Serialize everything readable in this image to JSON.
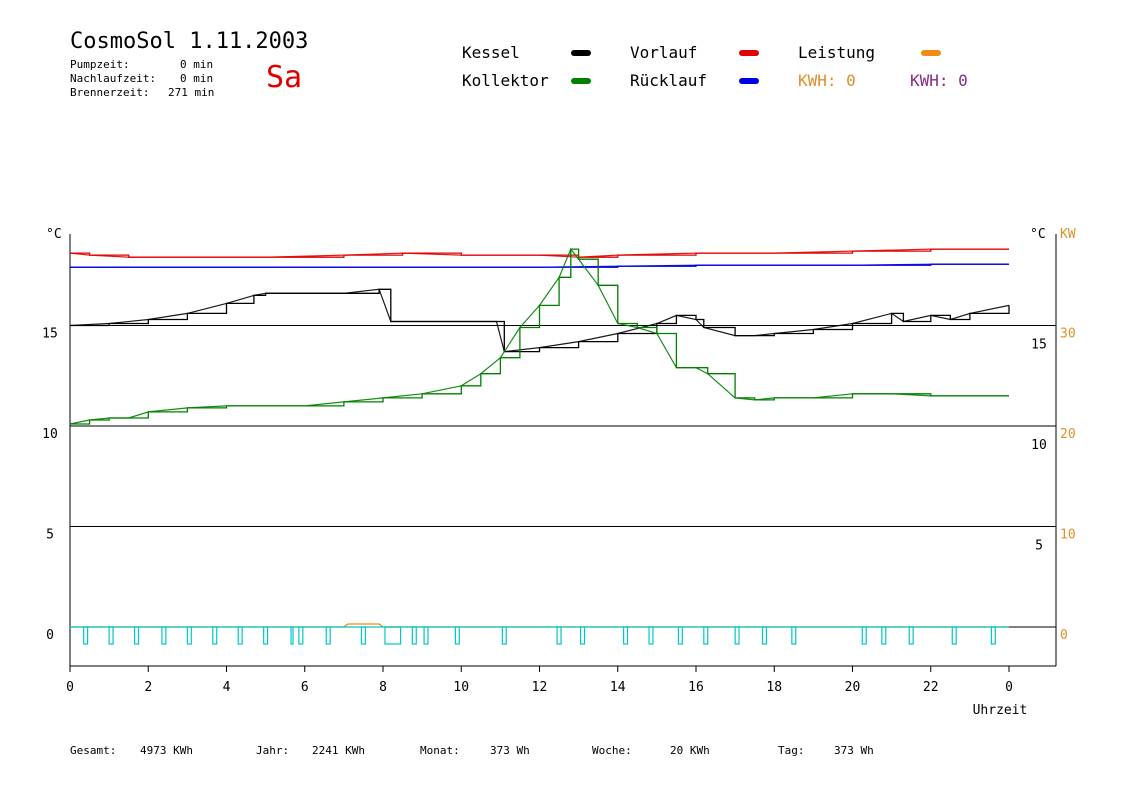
{
  "header": {
    "title": "CosmoSol 1.11.2003",
    "weekday": "Sa",
    "times": [
      {
        "label": "Pumpzeit:",
        "value": "0 min"
      },
      {
        "label": "Nachlaufzeit:",
        "value": "0 min"
      },
      {
        "label": "Brennerzeit:",
        "value": "271 min"
      }
    ]
  },
  "legend": [
    {
      "label": "Kessel",
      "color": "#000000"
    },
    {
      "label": "Vorlauf",
      "color": "#e00000"
    },
    {
      "label": "Leistung",
      "color": "#f08c10"
    },
    {
      "label": "Kollektor",
      "color": "#008000"
    },
    {
      "label": "Rücklauf",
      "color": "#0000e0"
    }
  ],
  "kwh": [
    {
      "label": "KWH: 0",
      "color": "#e0902a"
    },
    {
      "label": "KWH: 0",
      "color": "#8a2a8a"
    }
  ],
  "footer": [
    {
      "label": "Gesamt:",
      "value": "4973 KWh"
    },
    {
      "label": "Jahr:",
      "value": "2241 KWh"
    },
    {
      "label": "Monat:",
      "value": "373 Wh"
    },
    {
      "label": "Woche:",
      "value": "20 KWh"
    },
    {
      "label": "Tag:",
      "value": "373 Wh"
    }
  ],
  "chart_data": {
    "type": "line",
    "xlabel": "Uhrzeit",
    "x_ticks": [
      "0",
      "2",
      "4",
      "6",
      "8",
      "10",
      "12",
      "14",
      "16",
      "18",
      "20",
      "22",
      "0"
    ],
    "xlim": [
      0,
      24
    ],
    "left_axis": {
      "unit": "°C",
      "ticks": [
        "0",
        "5",
        "10",
        "15"
      ],
      "ylim": [
        0,
        20
      ]
    },
    "right_axis_lower": {
      "unit": "°C",
      "ticks": [
        "5",
        "10",
        "15"
      ]
    },
    "right_axis_upper": {
      "unit": "KW",
      "ticks": [
        "0",
        "10",
        "20",
        "30"
      ],
      "color": "#e0902a"
    },
    "series": [
      {
        "name": "Vorlauf",
        "color": "#e00000",
        "x": [
          0,
          0.5,
          1.5,
          3,
          5,
          7,
          8.5,
          10,
          12,
          13,
          14,
          16,
          18,
          20,
          22,
          24
        ],
        "y": [
          18.6,
          18.5,
          18.4,
          18.4,
          18.4,
          18.5,
          18.6,
          18.5,
          18.5,
          18.4,
          18.5,
          18.6,
          18.6,
          18.7,
          18.8,
          18.8
        ]
      },
      {
        "name": "Rücklauf",
        "color": "#0000e0",
        "x": [
          0,
          2,
          4,
          6,
          8,
          10,
          12,
          14,
          16,
          18,
          20,
          22,
          24
        ],
        "y": [
          17.9,
          17.9,
          17.9,
          17.9,
          17.9,
          17.9,
          17.9,
          17.95,
          18.0,
          18.0,
          18.0,
          18.05,
          18.05
        ]
      },
      {
        "name": "Kessel",
        "color": "#000000",
        "x": [
          0,
          1,
          2,
          3,
          4,
          4.7,
          5,
          6,
          7,
          7.9,
          8.2,
          9,
          10,
          10.9,
          11.1,
          12,
          13,
          14,
          15,
          15.5,
          16,
          16.2,
          17,
          17.5,
          18,
          19,
          20,
          21,
          21.3,
          22,
          22.5,
          23,
          24
        ],
        "y": [
          15.0,
          15.1,
          15.3,
          15.6,
          16.1,
          16.5,
          16.6,
          16.6,
          16.6,
          16.8,
          15.2,
          15.2,
          15.2,
          15.2,
          13.7,
          13.9,
          14.2,
          14.6,
          15.1,
          15.5,
          15.3,
          14.9,
          14.5,
          14.5,
          14.6,
          14.8,
          15.1,
          15.6,
          15.2,
          15.5,
          15.3,
          15.6,
          16.0
        ]
      },
      {
        "name": "Kollektor",
        "color": "#008000",
        "x": [
          0,
          0.5,
          1,
          1.5,
          2,
          3,
          4,
          5,
          6,
          7,
          8,
          9,
          10,
          10.5,
          11,
          11.5,
          12,
          12.5,
          12.8,
          13,
          13.5,
          14,
          14.5,
          15,
          15.5,
          16,
          16.3,
          17,
          17.5,
          18,
          19,
          20,
          21,
          22,
          23,
          24
        ],
        "y": [
          10.1,
          10.3,
          10.4,
          10.4,
          10.7,
          10.9,
          11.0,
          11.0,
          11.0,
          11.2,
          11.4,
          11.6,
          12.0,
          12.6,
          13.4,
          14.9,
          16.0,
          17.4,
          18.8,
          18.3,
          17.0,
          15.1,
          14.9,
          14.6,
          12.9,
          12.9,
          12.6,
          11.4,
          11.3,
          11.4,
          11.4,
          11.6,
          11.6,
          11.5,
          11.5,
          11.5
        ]
      }
    ],
    "leistung_kw": {
      "name": "Leistung",
      "x": [
        0,
        7,
        7.1,
        7.9,
        8.0,
        24
      ],
      "y": [
        0,
        0,
        0.3,
        0.3,
        0,
        0
      ]
    },
    "pump_pulses": {
      "name": "Pumpe",
      "color": "#00c8c8",
      "on": [
        [
          0.35,
          0.45
        ],
        [
          1.0,
          1.1
        ],
        [
          1.65,
          1.75
        ],
        [
          2.35,
          2.45
        ],
        [
          3.0,
          3.1
        ],
        [
          3.65,
          3.75
        ],
        [
          4.3,
          4.4
        ],
        [
          4.95,
          5.05
        ],
        [
          5.65,
          5.7
        ],
        [
          5.85,
          5.95
        ],
        [
          6.55,
          6.65
        ],
        [
          7.45,
          7.55
        ],
        [
          8.05,
          8.45
        ],
        [
          8.75,
          8.85
        ],
        [
          9.05,
          9.15
        ],
        [
          9.85,
          9.95
        ],
        [
          11.05,
          11.15
        ],
        [
          12.45,
          12.55
        ],
        [
          13.05,
          13.15
        ],
        [
          14.15,
          14.25
        ],
        [
          14.8,
          14.9
        ],
        [
          15.55,
          15.65
        ],
        [
          16.2,
          16.3
        ],
        [
          17.0,
          17.1
        ],
        [
          17.7,
          17.8
        ],
        [
          18.45,
          18.55
        ],
        [
          20.25,
          20.35
        ],
        [
          20.75,
          20.85
        ],
        [
          21.45,
          21.55
        ],
        [
          22.55,
          22.65
        ],
        [
          23.55,
          23.65
        ]
      ]
    }
  }
}
